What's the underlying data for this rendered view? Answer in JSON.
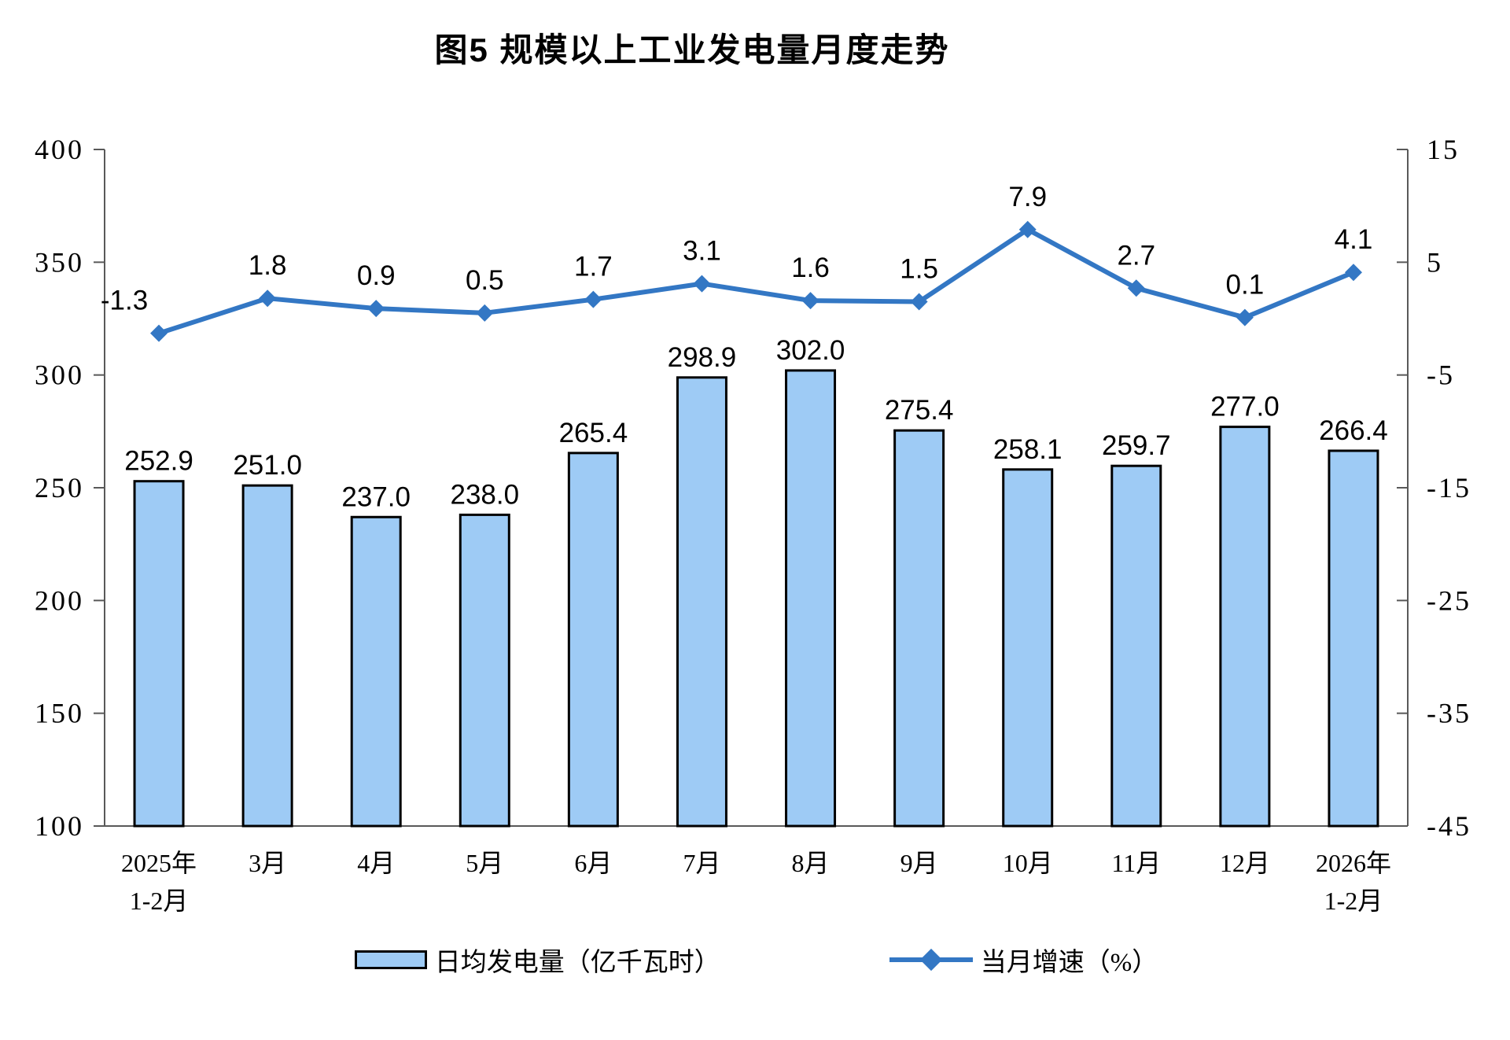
{
  "title": "图5  规模以上工业发电量月度走势",
  "chart_data": {
    "type": "combo-bar-line",
    "title": "图5  规模以上工业发电量月度走势",
    "categories": [
      [
        "2025年",
        "1-2月"
      ],
      [
        "3月"
      ],
      [
        "4月"
      ],
      [
        "5月"
      ],
      [
        "6月"
      ],
      [
        "7月"
      ],
      [
        "8月"
      ],
      [
        "9月"
      ],
      [
        "10月"
      ],
      [
        "11月"
      ],
      [
        "12月"
      ],
      [
        "2026年",
        "1-2月"
      ]
    ],
    "series": [
      {
        "name": "日均发电量（亿千瓦时）",
        "type": "bar",
        "axis": "left",
        "values": [
          252.9,
          251.0,
          237.0,
          238.0,
          265.4,
          298.9,
          302.0,
          275.4,
          258.1,
          259.7,
          277.0,
          266.4
        ],
        "labels": [
          "252.9",
          "251.0",
          "237.0",
          "238.0",
          "265.4",
          "298.9",
          "302.0",
          "275.4",
          "258.1",
          "259.7",
          "277.0",
          "266.4"
        ]
      },
      {
        "name": "当月增速（%）",
        "type": "line",
        "axis": "right",
        "values": [
          -1.3,
          1.8,
          0.9,
          0.5,
          1.7,
          3.1,
          1.6,
          1.5,
          7.9,
          2.7,
          0.1,
          4.1
        ],
        "labels": [
          "-1.3",
          "1.8",
          "0.9",
          "0.5",
          "1.7",
          "3.1",
          "1.6",
          "1.5",
          "7.9",
          "2.7",
          "0.1",
          "4.1"
        ]
      }
    ],
    "axes": {
      "left": {
        "min": 100,
        "max": 400,
        "ticks": [
          400,
          350,
          300,
          250,
          200,
          150,
          100
        ],
        "tick_labels": [
          "400",
          "350",
          "300",
          "250",
          "200",
          "150",
          "100"
        ]
      },
      "right": {
        "min": -45,
        "max": 15,
        "ticks": [
          15,
          5,
          -5,
          -15,
          -25,
          -35,
          -45
        ],
        "tick_labels": [
          "15",
          "5",
          "-5",
          "-15",
          "-25",
          "-35",
          "-45"
        ]
      }
    },
    "grid": false,
    "legend_position": "bottom",
    "colors": {
      "bar_fill": "#9ECBF5",
      "bar_border": "#000000",
      "line": "#3377C4",
      "axis": "#595959",
      "text": "#000000"
    }
  }
}
